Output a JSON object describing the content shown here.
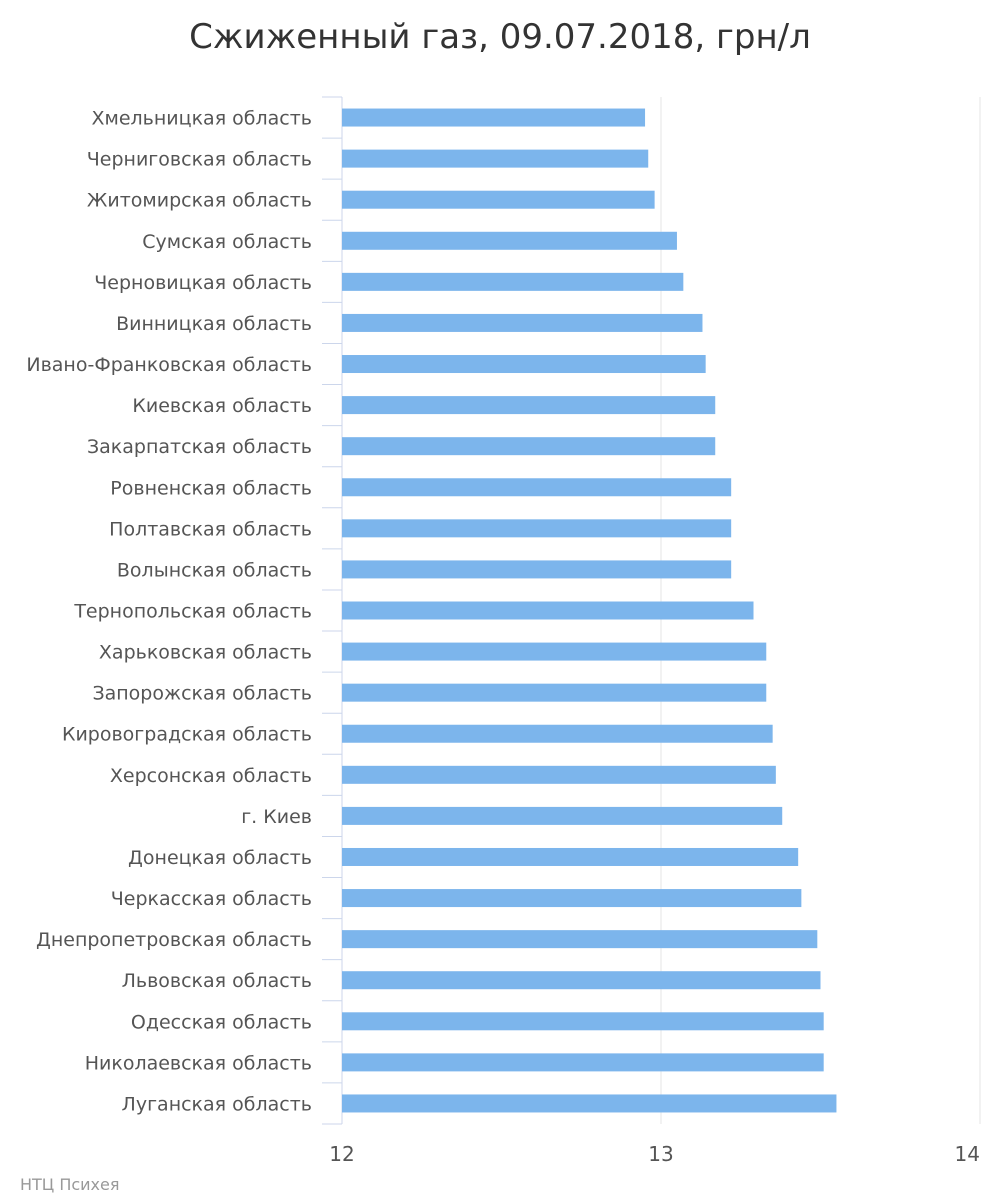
{
  "chart_data": {
    "type": "bar",
    "orientation": "horizontal",
    "title": "Сжиженный газ, 09.07.2018, грн/л",
    "xlabel": "",
    "ylabel": "",
    "xlim": [
      12,
      14
    ],
    "ticks": [
      "12",
      "13",
      "14"
    ],
    "tick_values": [
      12,
      13,
      14
    ],
    "grid": true,
    "legend": "none",
    "bar_color": "#7cb5ec",
    "categories": [
      "Хмельницкая область",
      "Черниговская область",
      "Житомирская область",
      "Сумская область",
      "Черновицкая область",
      "Винницкая область",
      "Ивано-Франковская область",
      "Киевская область",
      "Закарпатская область",
      "Ровненская область",
      "Полтавская область",
      "Волынская область",
      "Тернопольская область",
      "Харьковская область",
      "Запорожская область",
      "Кировоградская область",
      "Херсонская область",
      "г. Киев",
      "Донецкая область",
      "Черкасская область",
      "Днепропетровская область",
      "Львовская область",
      "Одесская область",
      "Николаевская область",
      "Луганская область"
    ],
    "values": [
      12.95,
      12.96,
      12.98,
      13.05,
      13.07,
      13.13,
      13.14,
      13.17,
      13.17,
      13.22,
      13.22,
      13.22,
      13.29,
      13.33,
      13.33,
      13.35,
      13.36,
      13.38,
      13.43,
      13.44,
      13.49,
      13.5,
      13.51,
      13.51,
      13.55
    ]
  },
  "credit": "НТЦ Психея"
}
